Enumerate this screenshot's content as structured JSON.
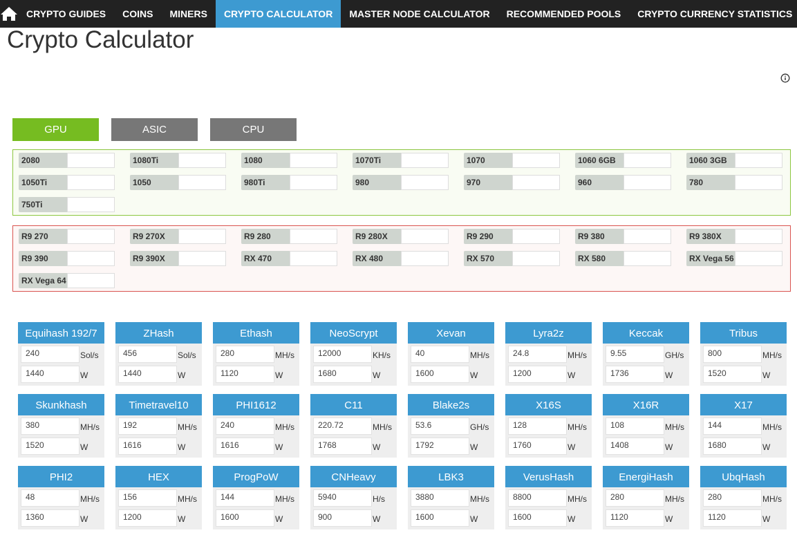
{
  "nav": {
    "items": [
      "CRYPTO GUIDES",
      "COINS",
      "MINERS",
      "CRYPTO CALCULATOR",
      "MASTER NODE CALCULATOR",
      "RECOMMENDED POOLS",
      "CRYPTO CURRENCY STATISTICS"
    ],
    "active": 3
  },
  "page_title": "Crypto Calculator",
  "tabs": {
    "items": [
      "GPU",
      "ASIC",
      "CPU"
    ],
    "active": 0
  },
  "gpu_groups": [
    {
      "border": "#8cc63f",
      "background": "#f9fcf3",
      "cards": [
        "2080",
        "1080Ti",
        "1080",
        "1070Ti",
        "1070",
        "1060 6GB",
        "1060 3GB",
        "1050Ti",
        "1050",
        "980Ti",
        "980",
        "970",
        "960",
        "780",
        "750Ti"
      ]
    },
    {
      "border": "#d9534f",
      "background": "#fdf7f6",
      "cards": [
        "R9 270",
        "R9 270X",
        "R9 280",
        "R9 280X",
        "R9 290",
        "R9 380",
        "R9 380X",
        "R9 390",
        "R9 390X",
        "RX 470",
        "RX 480",
        "RX 570",
        "RX 580",
        "RX Vega 56",
        "RX Vega 64"
      ]
    }
  ],
  "algorithms": [
    {
      "name": "Equihash 192/7",
      "hashrate": 240,
      "unit": "Sol/s",
      "power": 1440,
      "power_unit": "W"
    },
    {
      "name": "ZHash",
      "hashrate": 456,
      "unit": "Sol/s",
      "power": 1440,
      "power_unit": "W"
    },
    {
      "name": "Ethash",
      "hashrate": 280,
      "unit": "MH/s",
      "power": 1120,
      "power_unit": "W"
    },
    {
      "name": "NeoScrypt",
      "hashrate": 12000,
      "unit": "KH/s",
      "power": 1680,
      "power_unit": "W"
    },
    {
      "name": "Xevan",
      "hashrate": 40,
      "unit": "MH/s",
      "power": 1600,
      "power_unit": "W"
    },
    {
      "name": "Lyra2z",
      "hashrate": 24.8,
      "unit": "MH/s",
      "power": 1200,
      "power_unit": "W"
    },
    {
      "name": "Keccak",
      "hashrate": 9.55,
      "unit": "GH/s",
      "power": 1736,
      "power_unit": "W"
    },
    {
      "name": "Tribus",
      "hashrate": 800,
      "unit": "MH/s",
      "power": 1520,
      "power_unit": "W"
    },
    {
      "name": "Skunkhash",
      "hashrate": 380,
      "unit": "MH/s",
      "power": 1520,
      "power_unit": "W"
    },
    {
      "name": "Timetravel10",
      "hashrate": 192,
      "unit": "MH/s",
      "power": 1616,
      "power_unit": "W"
    },
    {
      "name": "PHI1612",
      "hashrate": 240,
      "unit": "MH/s",
      "power": 1616,
      "power_unit": "W"
    },
    {
      "name": "C11",
      "hashrate": 220.72,
      "unit": "MH/s",
      "power": 1768,
      "power_unit": "W"
    },
    {
      "name": "Blake2s",
      "hashrate": 53.6,
      "unit": "GH/s",
      "power": 1792,
      "power_unit": "W"
    },
    {
      "name": "X16S",
      "hashrate": 128,
      "unit": "MH/s",
      "power": 1760,
      "power_unit": "W"
    },
    {
      "name": "X16R",
      "hashrate": 108,
      "unit": "MH/s",
      "power": 1408,
      "power_unit": "W"
    },
    {
      "name": "X17",
      "hashrate": 144,
      "unit": "MH/s",
      "power": 1680,
      "power_unit": "W"
    },
    {
      "name": "PHI2",
      "hashrate": 48,
      "unit": "MH/s",
      "power": 1360,
      "power_unit": "W"
    },
    {
      "name": "HEX",
      "hashrate": 156,
      "unit": "MH/s",
      "power": 1200,
      "power_unit": "W"
    },
    {
      "name": "ProgPoW",
      "hashrate": 144,
      "unit": "MH/s",
      "power": 1600,
      "power_unit": "W"
    },
    {
      "name": "CNHeavy",
      "hashrate": 5940,
      "unit": "H/s",
      "power": 900,
      "power_unit": "W"
    },
    {
      "name": "LBK3",
      "hashrate": 3880,
      "unit": "MH/s",
      "power": 1600,
      "power_unit": "W"
    },
    {
      "name": "VerusHash",
      "hashrate": 8800,
      "unit": "MH/s",
      "power": 1600,
      "power_unit": "W"
    },
    {
      "name": "EnergiHash",
      "hashrate": 280,
      "unit": "MH/s",
      "power": 1120,
      "power_unit": "W"
    },
    {
      "name": "UbqHash",
      "hashrate": 280,
      "unit": "MH/s",
      "power": 1120,
      "power_unit": "W"
    }
  ]
}
